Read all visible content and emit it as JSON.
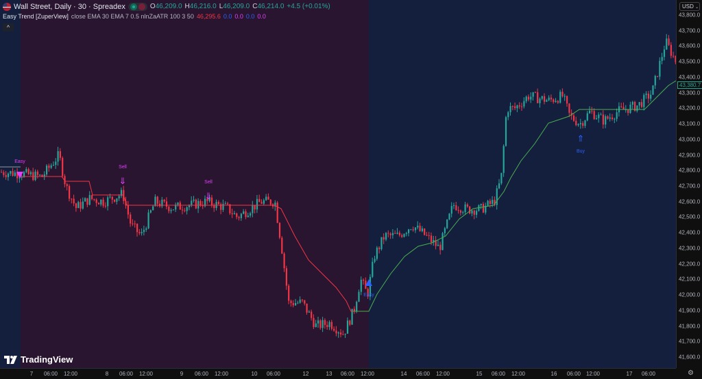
{
  "header": {
    "symbol": "Wall Street, Daily · 30 · Spreadex",
    "open_label": "O",
    "open": "46,209.0",
    "high_label": "H",
    "high": "46,216.0",
    "low_label": "L",
    "low": "46,209.0",
    "close_label": "C",
    "close": "46,214.0",
    "change": "+4.5 (+0.01%)"
  },
  "indicator": {
    "name": "Easy Trend [ZuperView]",
    "params": "close EMA 30 EMA 7 0.5 nlnZaATR 100 3 50",
    "value": "46,295.6",
    "v1": "0.0",
    "v2": "0.0",
    "v3": "0.0",
    "v4": "0.0",
    "collapse": "^"
  },
  "price_axis": {
    "currency": "USD",
    "ticks": [
      "43,800.0",
      "43,700.0",
      "43,600.0",
      "43,500.0",
      "43,400.0",
      "43,300.0",
      "43,200.0",
      "43,100.0",
      "43,000.0",
      "42,900.0",
      "42,800.0",
      "42,700.0",
      "42,600.0",
      "42,500.0",
      "42,400.0",
      "42,300.0",
      "42,200.0",
      "42,100.0",
      "42,000.0",
      "41,900.0",
      "41,800.0",
      "41,700.0",
      "41,600.0"
    ],
    "current_price": "43,380.7"
  },
  "time_axis": {
    "ticks": [
      "7",
      "06:00",
      "12:00",
      "8",
      "06:00",
      "12:00",
      "9",
      "06:00",
      "12:00",
      "10",
      "06:00",
      "12",
      "13",
      "06:00",
      "12:00",
      "14",
      "06:00",
      "12:00",
      "15",
      "06:00",
      "12:00",
      "16",
      "06:00",
      "12:00",
      "17",
      "06:00"
    ]
  },
  "signals": [
    {
      "label": "Easy",
      "type": "sell"
    },
    {
      "label": "Sell",
      "type": "sell"
    },
    {
      "label": "Sell",
      "type": "sell"
    },
    {
      "label": "Easy",
      "type": "buy"
    },
    {
      "label": "Buy",
      "type": "buy"
    }
  ],
  "branding": {
    "logo": "TradingView"
  },
  "colors": {
    "up": "#26a69a",
    "down": "#f23645",
    "bear_zone": "#2a1530",
    "bull_zone": "#131f3d",
    "sell_signal": "#e040fb",
    "buy_signal": "#2962ff"
  },
  "chart_data": {
    "type": "candlestick",
    "ylim": [
      41600,
      43800
    ],
    "approx_close_path": [
      42790,
      42780,
      42760,
      42900,
      42700,
      42560,
      42620,
      42600,
      42650,
      42450,
      42380,
      42600,
      42560,
      42580,
      42600,
      42560,
      42500,
      42600,
      42600,
      42300,
      41950,
      41950,
      41800,
      41820,
      41750,
      41900,
      42100,
      42000,
      42250,
      42380,
      42380,
      42450,
      42380,
      42300,
      42580,
      42550,
      42550,
      42600,
      42750,
      43200,
      43200,
      43280,
      43250,
      43280,
      43150,
      43100,
      43180,
      43120,
      43180,
      43220,
      43300,
      43630,
      43500
    ]
  }
}
